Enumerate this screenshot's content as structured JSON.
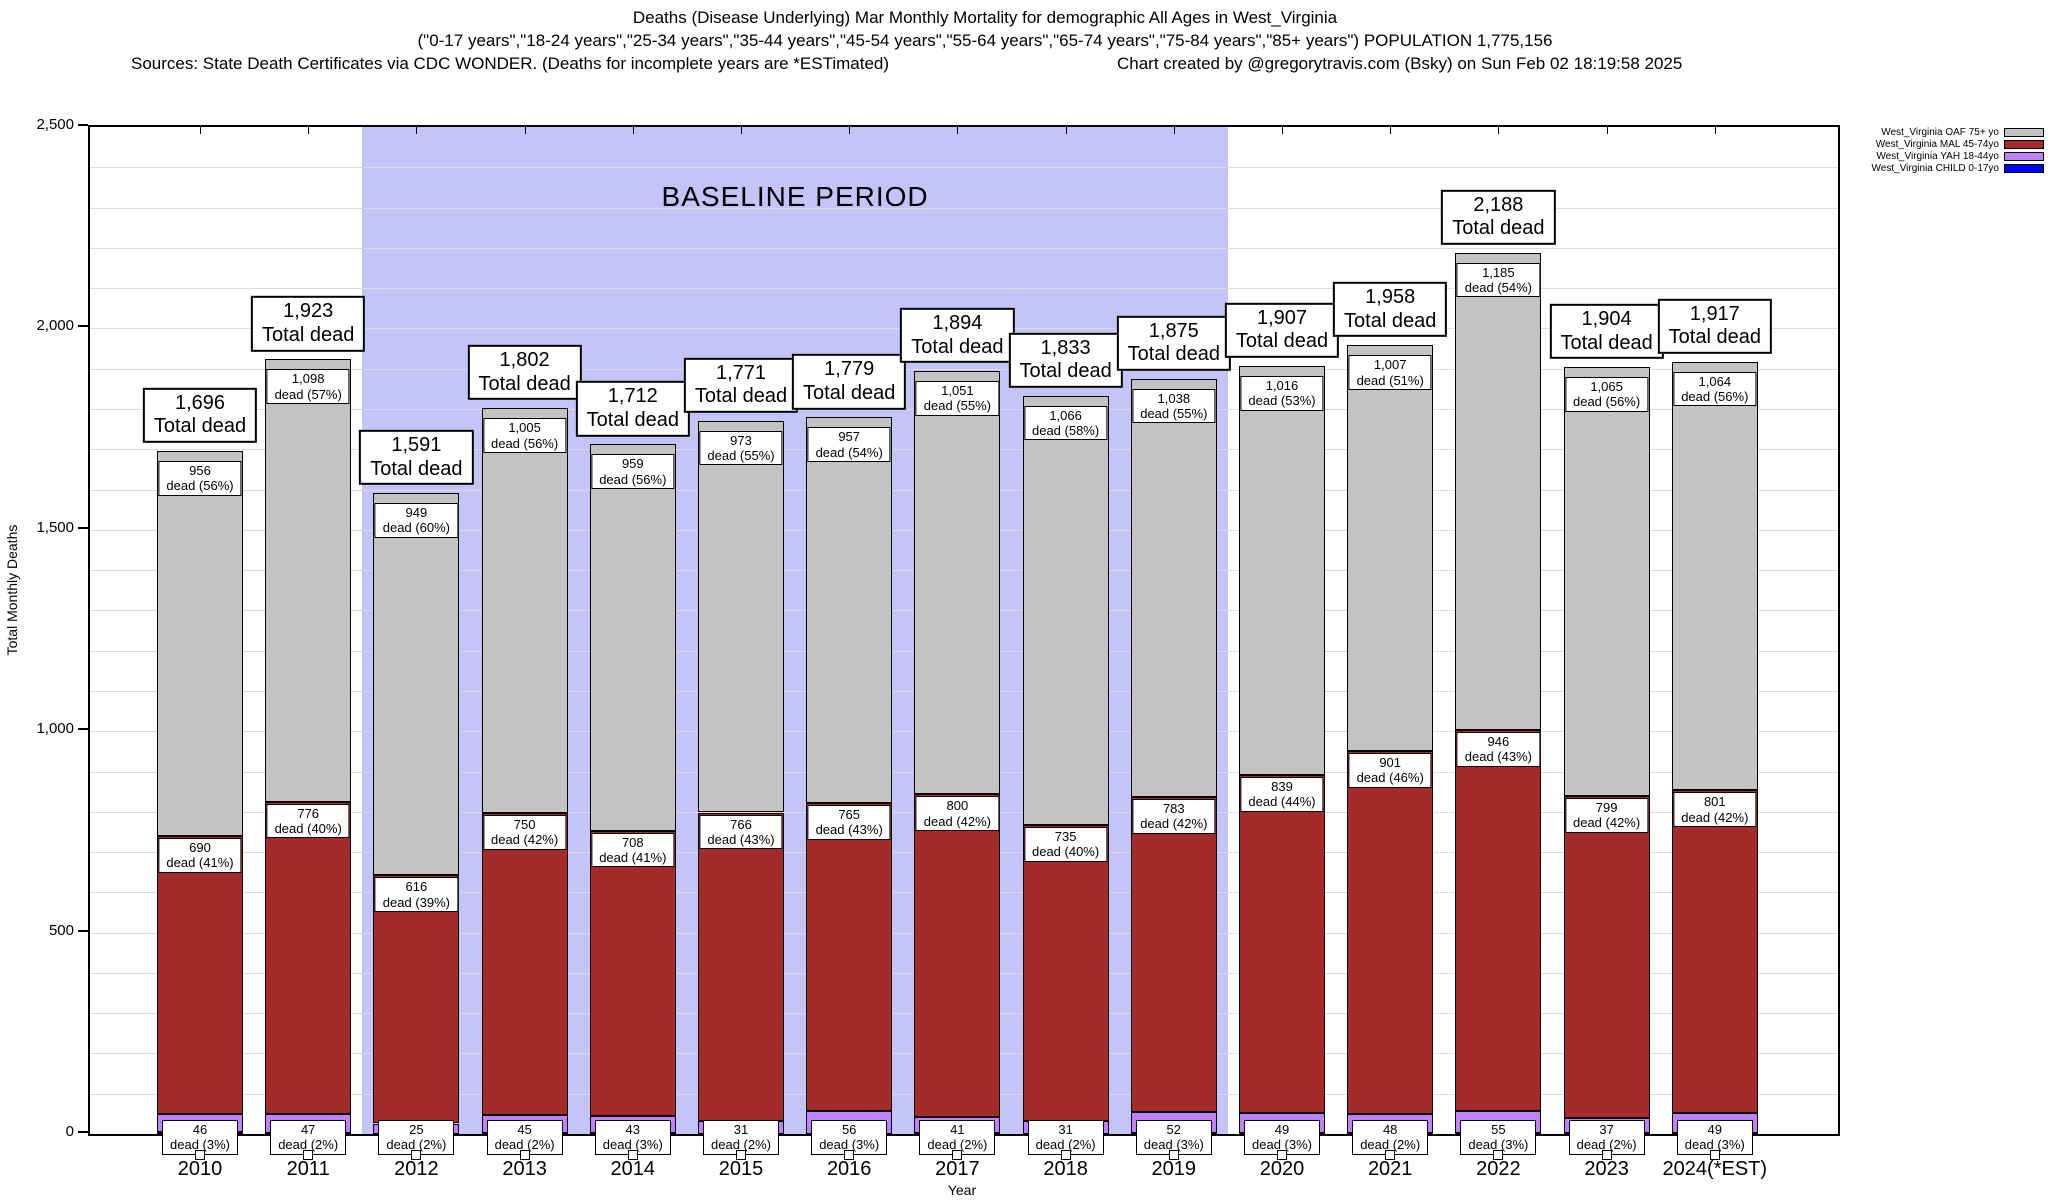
{
  "header": {
    "title": "Deaths (Disease Underlying) Mar Monthly Mortality for demographic All Ages in West_Virginia",
    "subtitle": "(\"0-17 years\",\"18-24 years\",\"25-34 years\",\"35-44 years\",\"45-54 years\",\"55-64 years\",\"65-74 years\",\"75-84 years\",\"85+ years\") POPULATION 1,775,156",
    "sources": "Sources: State Death Certificates via CDC WONDER. (Deaths for incomplete years are *ESTimated)",
    "credit": "Chart created by @gregorytravis.com (Bsky) on Sun Feb 02 18:19:58 2025"
  },
  "legend": [
    {
      "label": "West_Virginia OAF 75+ yo",
      "color": "#c3c3c3"
    },
    {
      "label": "West_Virginia MAL 45-74yo",
      "color": "#a52a2a"
    },
    {
      "label": "West_Virginia YAH 18-44yo",
      "color": "#c080ff"
    },
    {
      "label": "West_Virginia CHILD 0-17yo",
      "color": "#0000ff"
    }
  ],
  "chart_data": {
    "type": "bar",
    "stacked": true,
    "xlabel": "Year",
    "ylabel": "Total Monthly Deaths",
    "ylim": [
      0,
      2500
    ],
    "yticks": [
      0,
      500,
      1000,
      1500,
      2000,
      2500
    ],
    "ytick_labels": [
      "0",
      "500",
      "1,000",
      "1,500",
      "2,000",
      "2,500"
    ],
    "minor_grid_step": 100,
    "grid": true,
    "legend_position": "top-right-outside",
    "categories": [
      "2010",
      "2011",
      "2012",
      "2013",
      "2014",
      "2015",
      "2016",
      "2017",
      "2018",
      "2019",
      "2020",
      "2021",
      "2022",
      "2023",
      "2024(*EST)"
    ],
    "totals": [
      1696,
      1923,
      1591,
      1802,
      1712,
      1771,
      1779,
      1894,
      1833,
      1875,
      1907,
      1958,
      2188,
      1904,
      1917
    ],
    "total_label_suffix": "Total dead",
    "segment_label_suffix": "dead",
    "series": [
      {
        "name": "West_Virginia OAF 75+ yo",
        "color": "#c3c3c3",
        "values": [
          956,
          1098,
          949,
          1005,
          959,
          973,
          957,
          1051,
          1066,
          1038,
          1016,
          1007,
          1185,
          1065,
          1064
        ],
        "pct": [
          56,
          57,
          60,
          56,
          56,
          55,
          54,
          55,
          58,
          55,
          53,
          51,
          54,
          56,
          56
        ]
      },
      {
        "name": "West_Virginia MAL 45-74yo",
        "color": "#a52a2a",
        "values": [
          690,
          776,
          616,
          750,
          708,
          766,
          765,
          800,
          735,
          783,
          839,
          901,
          946,
          799,
          801
        ],
        "pct": [
          41,
          40,
          39,
          42,
          41,
          43,
          43,
          42,
          40,
          42,
          44,
          46,
          43,
          42,
          42
        ]
      },
      {
        "name": "West_Virginia YAH 18-44yo",
        "color": "#c080ff",
        "values": [
          46,
          47,
          25,
          45,
          43,
          31,
          56,
          41,
          31,
          52,
          49,
          48,
          55,
          37,
          49
        ],
        "pct": [
          3,
          2,
          2,
          2,
          3,
          2,
          3,
          2,
          2,
          3,
          3,
          2,
          3,
          2,
          3
        ]
      },
      {
        "name": "West_Virginia CHILD 0-17yo",
        "color": "#0000ff",
        "values": "remainder_of_total_unlabeled"
      }
    ],
    "baseline": {
      "label": "BASELINE PERIOD",
      "from": "2012",
      "to": "2019",
      "color": "#c4c4f8"
    }
  }
}
